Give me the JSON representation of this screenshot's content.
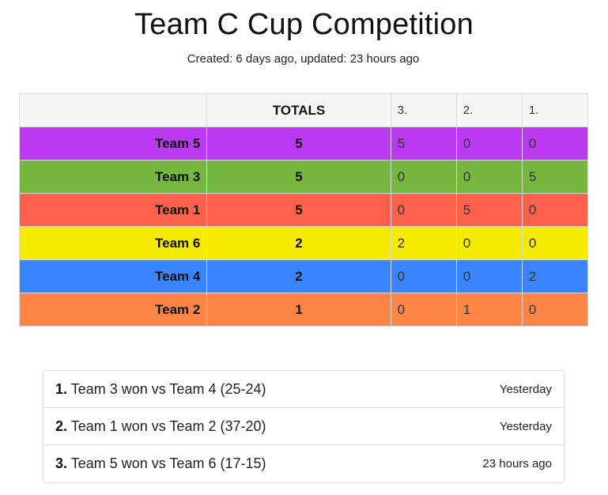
{
  "header": {
    "title": "Team C Cup Competition",
    "subtitle": "Created: 6 days ago, updated: 23 hours ago"
  },
  "standings": {
    "columns": [
      "",
      "TOTALS",
      "3.",
      "2.",
      "1."
    ],
    "rows": [
      {
        "team": "Team 5",
        "total": "5",
        "rounds": [
          "5",
          "0",
          "0"
        ],
        "color": "#b93af0"
      },
      {
        "team": "Team 3",
        "total": "5",
        "rounds": [
          "0",
          "0",
          "5"
        ],
        "color": "#76b83f"
      },
      {
        "team": "Team 1",
        "total": "5",
        "rounds": [
          "0",
          "5",
          "0"
        ],
        "color": "#ff614d"
      },
      {
        "team": "Team 6",
        "total": "2",
        "rounds": [
          "2",
          "0",
          "0"
        ],
        "color": "#f4eb00"
      },
      {
        "team": "Team 4",
        "total": "2",
        "rounds": [
          "0",
          "0",
          "2"
        ],
        "color": "#3a85ff"
      },
      {
        "team": "Team 2",
        "total": "1",
        "rounds": [
          "0",
          "1",
          "0"
        ],
        "color": "#ff8547"
      }
    ]
  },
  "results": [
    {
      "num": "1.",
      "text": "Team 3 won vs Team 4 (25-24)",
      "time": "Yesterday"
    },
    {
      "num": "2.",
      "text": "Team 1 won vs Team 2 (37-20)",
      "time": "Yesterday"
    },
    {
      "num": "3.",
      "text": "Team 5 won vs Team 6 (17-15)",
      "time": "23 hours ago"
    }
  ]
}
